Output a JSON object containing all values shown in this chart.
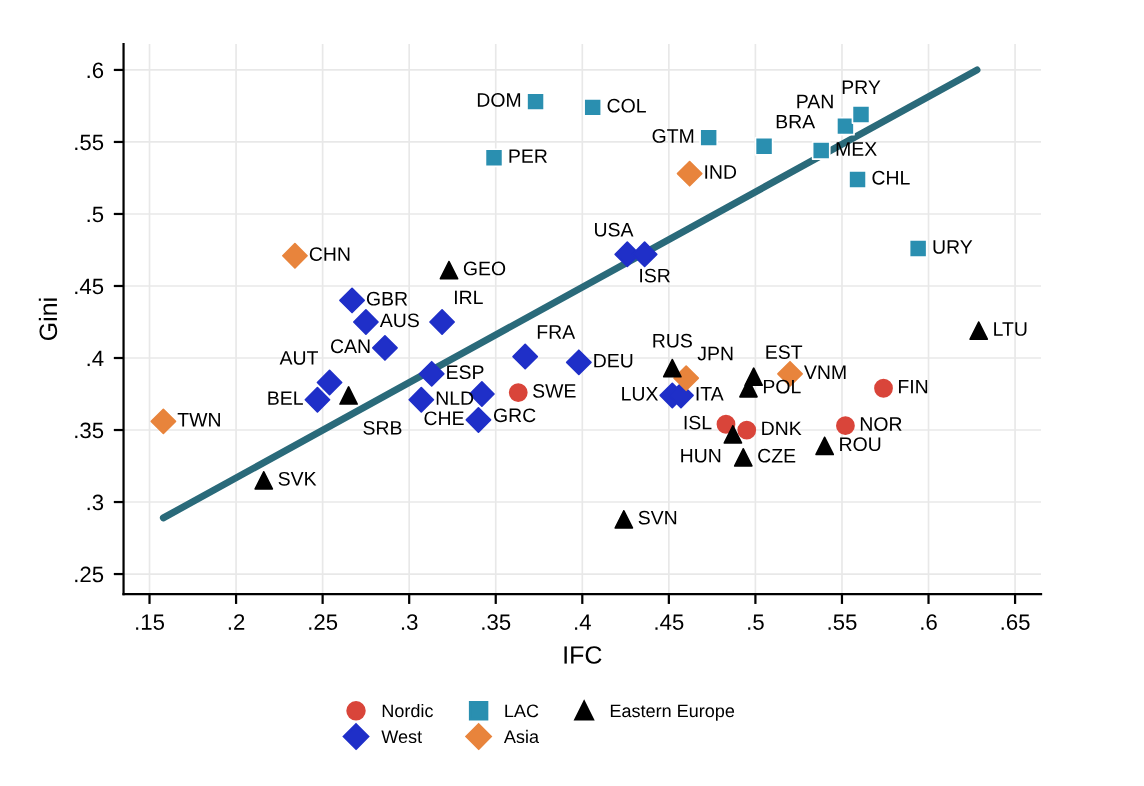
{
  "chart_data": {
    "type": "scatter",
    "xlabel": "IFC",
    "ylabel": "Gini",
    "grid": true,
    "legend": "bottom",
    "xlim": [
      0.135,
      0.665
    ],
    "ylim": [
      0.236,
      0.618
    ],
    "xticks": [
      {
        "value": 0.15,
        "label": ".15"
      },
      {
        "value": 0.2,
        "label": ".2"
      },
      {
        "value": 0.25,
        "label": ".25"
      },
      {
        "value": 0.3,
        "label": ".3"
      },
      {
        "value": 0.35,
        "label": ".35"
      },
      {
        "value": 0.4,
        "label": ".4"
      },
      {
        "value": 0.45,
        "label": ".45"
      },
      {
        "value": 0.5,
        "label": ".5"
      },
      {
        "value": 0.55,
        "label": ".55"
      },
      {
        "value": 0.6,
        "label": ".6"
      },
      {
        "value": 0.65,
        "label": ".65"
      }
    ],
    "yticks": [
      {
        "value": 0.25,
        "label": ".25"
      },
      {
        "value": 0.3,
        "label": ".3"
      },
      {
        "value": 0.35,
        "label": ".35"
      },
      {
        "value": 0.4,
        "label": ".4"
      },
      {
        "value": 0.45,
        "label": ".45"
      },
      {
        "value": 0.5,
        "label": ".5"
      },
      {
        "value": 0.55,
        "label": ".55"
      },
      {
        "value": 0.6,
        "label": ".6"
      }
    ],
    "series": [
      {
        "name": "Nordic",
        "color": "#d9453a",
        "marker": "circle",
        "x": [
          0.363,
          0.574,
          0.483,
          0.495,
          0.552
        ],
        "values": [
          0.376,
          0.379,
          0.354,
          0.35,
          0.353
        ]
      },
      {
        "name": "West",
        "color": "#1f2fc8",
        "marker": "diamond",
        "x": [
          0.267,
          0.275,
          0.319,
          0.286,
          0.313,
          0.367,
          0.398,
          0.254,
          0.247,
          0.307,
          0.342,
          0.34,
          0.426,
          0.436,
          0.452,
          0.457
        ],
        "values": [
          0.44,
          0.425,
          0.425,
          0.407,
          0.389,
          0.401,
          0.397,
          0.383,
          0.371,
          0.371,
          0.375,
          0.357,
          0.472,
          0.472,
          0.374,
          0.374
        ]
      },
      {
        "name": "LAC",
        "color": "#2a8fb0",
        "marker": "square",
        "x": [
          0.373,
          0.406,
          0.349,
          0.473,
          0.505,
          0.538,
          0.552,
          0.561,
          0.559,
          0.594
        ],
        "values": [
          0.578,
          0.574,
          0.539,
          0.553,
          0.547,
          0.544,
          0.561,
          0.569,
          0.524,
          0.476
        ]
      },
      {
        "name": "Asia",
        "color": "#e8843c",
        "marker": "diamond",
        "x": [
          0.234,
          0.158,
          0.462,
          0.46,
          0.52
        ],
        "values": [
          0.471,
          0.356,
          0.528,
          0.386,
          0.389
        ]
      },
      {
        "name": "Eastern Europe",
        "color": "#000000",
        "marker": "triangle",
        "x": [
          0.323,
          0.265,
          0.216,
          0.424,
          0.629,
          0.452,
          0.499,
          0.496,
          0.487,
          0.54,
          0.493
        ],
        "values": [
          0.461,
          0.374,
          0.315,
          0.288,
          0.419,
          0.393,
          0.387,
          0.379,
          0.347,
          0.339,
          0.331
        ]
      },
      {
        "type": "line",
        "color": "#2a6a7a",
        "x": [
          0.158,
          0.628
        ],
        "values": [
          0.289,
          0.6
        ]
      }
    ],
    "annotations": [
      {
        "text": "SWE",
        "x": 0.363,
        "y": 0.376
      },
      {
        "text": "FIN",
        "x": 0.574,
        "y": 0.379
      },
      {
        "text": "ISL",
        "x": 0.483,
        "y": 0.354
      },
      {
        "text": "DNK",
        "x": 0.495,
        "y": 0.35
      },
      {
        "text": "NOR",
        "x": 0.552,
        "y": 0.353
      },
      {
        "text": "GBR",
        "x": 0.267,
        "y": 0.44
      },
      {
        "text": "AUS",
        "x": 0.275,
        "y": 0.425
      },
      {
        "text": "IRL",
        "x": 0.319,
        "y": 0.425
      },
      {
        "text": "CAN",
        "x": 0.286,
        "y": 0.407
      },
      {
        "text": "ESP",
        "x": 0.313,
        "y": 0.389
      },
      {
        "text": "FRA",
        "x": 0.367,
        "y": 0.401
      },
      {
        "text": "DEU",
        "x": 0.398,
        "y": 0.397
      },
      {
        "text": "AUT",
        "x": 0.254,
        "y": 0.383
      },
      {
        "text": "BEL",
        "x": 0.247,
        "y": 0.371
      },
      {
        "text": "NLD",
        "x": 0.307,
        "y": 0.371
      },
      {
        "text": "GRC",
        "x": 0.342,
        "y": 0.375
      },
      {
        "text": "CHE",
        "x": 0.34,
        "y": 0.357
      },
      {
        "text": "ISR",
        "x": 0.426,
        "y": 0.472
      },
      {
        "text": "USA",
        "x": 0.436,
        "y": 0.472
      },
      {
        "text": "LUX",
        "x": 0.452,
        "y": 0.374
      },
      {
        "text": "ITA",
        "x": 0.457,
        "y": 0.374
      },
      {
        "text": "DOM",
        "x": 0.373,
        "y": 0.578
      },
      {
        "text": "COL",
        "x": 0.406,
        "y": 0.574
      },
      {
        "text": "PER",
        "x": 0.349,
        "y": 0.539
      },
      {
        "text": "GTM",
        "x": 0.473,
        "y": 0.553
      },
      {
        "text": "BRA",
        "x": 0.505,
        "y": 0.547
      },
      {
        "text": "MEX",
        "x": 0.538,
        "y": 0.544
      },
      {
        "text": "PAN",
        "x": 0.552,
        "y": 0.561
      },
      {
        "text": "PRY",
        "x": 0.561,
        "y": 0.569
      },
      {
        "text": "CHL",
        "x": 0.559,
        "y": 0.524
      },
      {
        "text": "URY",
        "x": 0.594,
        "y": 0.476
      },
      {
        "text": "CHN",
        "x": 0.234,
        "y": 0.471
      },
      {
        "text": "TWN",
        "x": 0.158,
        "y": 0.356
      },
      {
        "text": "IND",
        "x": 0.462,
        "y": 0.528
      },
      {
        "text": "JPN",
        "x": 0.46,
        "y": 0.386
      },
      {
        "text": "VNM",
        "x": 0.52,
        "y": 0.389
      },
      {
        "text": "GEO",
        "x": 0.323,
        "y": 0.461
      },
      {
        "text": "SRB",
        "x": 0.265,
        "y": 0.374
      },
      {
        "text": "SVK",
        "x": 0.216,
        "y": 0.315
      },
      {
        "text": "SVN",
        "x": 0.424,
        "y": 0.288
      },
      {
        "text": "LTU",
        "x": 0.629,
        "y": 0.419
      },
      {
        "text": "RUS",
        "x": 0.452,
        "y": 0.393
      },
      {
        "text": "EST",
        "x": 0.499,
        "y": 0.387
      },
      {
        "text": "POL",
        "x": 0.496,
        "y": 0.379
      },
      {
        "text": "HUN",
        "x": 0.487,
        "y": 0.347
      },
      {
        "text": "ROU",
        "x": 0.54,
        "y": 0.339
      },
      {
        "text": "CZE",
        "x": 0.493,
        "y": 0.331
      }
    ]
  }
}
